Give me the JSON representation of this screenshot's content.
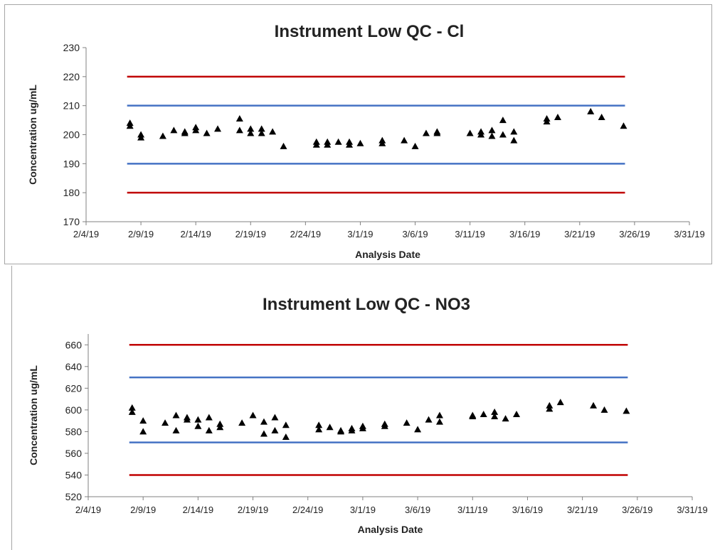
{
  "chart_data": [
    {
      "type": "scatter",
      "title": "Instrument Low QC - Cl",
      "xlabel": "Analysis Date",
      "ylabel": "Concentration ug/mL",
      "x_ticks": [
        "2/4/19",
        "2/9/19",
        "2/14/19",
        "2/19/19",
        "2/24/19",
        "3/1/19",
        "3/6/19",
        "3/11/19",
        "3/16/19",
        "3/21/19",
        "3/26/19",
        "3/31/19"
      ],
      "y_ticks": [
        "170",
        "180",
        "190",
        "200",
        "210",
        "220",
        "230"
      ],
      "xlim": [
        "2019-02-04",
        "2019-03-31"
      ],
      "ylim": [
        170,
        230
      ],
      "grid": false,
      "legend": "none",
      "limits": [
        {
          "value": 220,
          "color": "#c00000"
        },
        {
          "value": 210,
          "color": "#4472c4"
        },
        {
          "value": 190,
          "color": "#4472c4"
        },
        {
          "value": 180,
          "color": "#c00000"
        }
      ],
      "limits_range": [
        "2019-02-08",
        "2019-03-25"
      ],
      "marker_color": "#000000",
      "series": [
        {
          "points": [
            [
              "2019-02-08",
              204
            ],
            [
              "2019-02-08",
              203
            ],
            [
              "2019-02-09",
              200
            ],
            [
              "2019-02-09",
              199
            ],
            [
              "2019-02-11",
              199.5
            ],
            [
              "2019-02-12",
              201.5
            ],
            [
              "2019-02-13",
              200.5
            ],
            [
              "2019-02-13",
              201
            ],
            [
              "2019-02-14",
              202.5
            ],
            [
              "2019-02-14",
              201.5
            ],
            [
              "2019-02-15",
              200.5
            ],
            [
              "2019-02-16",
              202
            ],
            [
              "2019-02-18",
              205.5
            ],
            [
              "2019-02-18",
              201.5
            ],
            [
              "2019-02-19",
              202
            ],
            [
              "2019-02-19",
              200.5
            ],
            [
              "2019-02-20",
              202
            ],
            [
              "2019-02-20",
              200.5
            ],
            [
              "2019-02-21",
              201
            ],
            [
              "2019-02-22",
              196
            ],
            [
              "2019-02-25",
              197.5
            ],
            [
              "2019-02-25",
              196.5
            ],
            [
              "2019-02-26",
              197.5
            ],
            [
              "2019-02-26",
              196.5
            ],
            [
              "2019-02-27",
              197.5
            ],
            [
              "2019-02-28",
              197.5
            ],
            [
              "2019-02-28",
              196.5
            ],
            [
              "2019-03-01",
              197
            ],
            [
              "2019-03-03",
              198
            ],
            [
              "2019-03-03",
              197
            ],
            [
              "2019-03-05",
              198
            ],
            [
              "2019-03-06",
              196
            ],
            [
              "2019-03-07",
              200.5
            ],
            [
              "2019-03-08",
              201
            ],
            [
              "2019-03-08",
              200.5
            ],
            [
              "2019-03-11",
              200.5
            ],
            [
              "2019-03-12",
              201
            ],
            [
              "2019-03-12",
              200
            ],
            [
              "2019-03-13",
              201.5
            ],
            [
              "2019-03-13",
              199.5
            ],
            [
              "2019-03-14",
              205
            ],
            [
              "2019-03-14",
              200
            ],
            [
              "2019-03-15",
              201
            ],
            [
              "2019-03-15",
              198
            ],
            [
              "2019-03-18",
              205.5
            ],
            [
              "2019-03-18",
              204.5
            ],
            [
              "2019-03-19",
              206
            ],
            [
              "2019-03-22",
              208
            ],
            [
              "2019-03-23",
              206
            ],
            [
              "2019-03-25",
              203
            ]
          ]
        }
      ]
    },
    {
      "type": "scatter",
      "title": "Instrument Low QC - NO3",
      "xlabel": "Analysis Date",
      "ylabel": "Concentration ug/mL",
      "x_ticks": [
        "2/4/19",
        "2/9/19",
        "2/14/19",
        "2/19/19",
        "2/24/19",
        "3/1/19",
        "3/6/19",
        "3/11/19",
        "3/16/19",
        "3/21/19",
        "3/26/19",
        "3/31/19"
      ],
      "y_ticks": [
        "520",
        "540",
        "560",
        "580",
        "600",
        "620",
        "640",
        "660"
      ],
      "xlim": [
        "2019-02-04",
        "2019-03-31"
      ],
      "ylim": [
        520,
        670
      ],
      "grid": false,
      "legend": "none",
      "limits": [
        {
          "value": 660,
          "color": "#c00000"
        },
        {
          "value": 630,
          "color": "#4472c4"
        },
        {
          "value": 570,
          "color": "#4472c4"
        },
        {
          "value": 540,
          "color": "#c00000"
        }
      ],
      "limits_range": [
        "2019-02-08",
        "2019-03-25"
      ],
      "marker_color": "#000000",
      "series": [
        {
          "points": [
            [
              "2019-02-08",
              602
            ],
            [
              "2019-02-08",
              598
            ],
            [
              "2019-02-09",
              590
            ],
            [
              "2019-02-09",
              580
            ],
            [
              "2019-02-11",
              588
            ],
            [
              "2019-02-12",
              595
            ],
            [
              "2019-02-12",
              581
            ],
            [
              "2019-02-13",
              593
            ],
            [
              "2019-02-13",
              591
            ],
            [
              "2019-02-14",
              591
            ],
            [
              "2019-02-14",
              585
            ],
            [
              "2019-02-15",
              593
            ],
            [
              "2019-02-15",
              581
            ],
            [
              "2019-02-16",
              587
            ],
            [
              "2019-02-16",
              584
            ],
            [
              "2019-02-18",
              588
            ],
            [
              "2019-02-19",
              595
            ],
            [
              "2019-02-20",
              589
            ],
            [
              "2019-02-20",
              578
            ],
            [
              "2019-02-21",
              593
            ],
            [
              "2019-02-21",
              581
            ],
            [
              "2019-02-22",
              586
            ],
            [
              "2019-02-22",
              575
            ],
            [
              "2019-02-25",
              586
            ],
            [
              "2019-02-25",
              582
            ],
            [
              "2019-02-26",
              584
            ],
            [
              "2019-02-27",
              581
            ],
            [
              "2019-02-27",
              580
            ],
            [
              "2019-02-28",
              583
            ],
            [
              "2019-02-28",
              581
            ],
            [
              "2019-03-01",
              585
            ],
            [
              "2019-03-01",
              583
            ],
            [
              "2019-03-03",
              587
            ],
            [
              "2019-03-03",
              585
            ],
            [
              "2019-03-05",
              588
            ],
            [
              "2019-03-06",
              582
            ],
            [
              "2019-03-07",
              591
            ],
            [
              "2019-03-08",
              595
            ],
            [
              "2019-03-08",
              589
            ],
            [
              "2019-03-11",
              595
            ],
            [
              "2019-03-11",
              594
            ],
            [
              "2019-03-12",
              596
            ],
            [
              "2019-03-13",
              598
            ],
            [
              "2019-03-13",
              594
            ],
            [
              "2019-03-14",
              592
            ],
            [
              "2019-03-15",
              596
            ],
            [
              "2019-03-18",
              604
            ],
            [
              "2019-03-18",
              601
            ],
            [
              "2019-03-19",
              607
            ],
            [
              "2019-03-22",
              604
            ],
            [
              "2019-03-23",
              600
            ],
            [
              "2019-03-25",
              599
            ]
          ]
        }
      ]
    }
  ]
}
